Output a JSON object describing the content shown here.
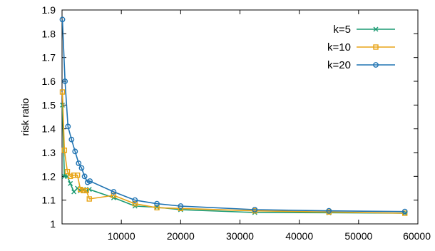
{
  "chart_data": {
    "type": "line",
    "title": "",
    "xlabel": "",
    "ylabel": "risk ratio",
    "xlim": [
      0,
      60000
    ],
    "ylim": [
      1,
      1.9
    ],
    "x_ticks": [
      10000,
      20000,
      30000,
      40000,
      50000,
      60000
    ],
    "x_tick_labels": [
      "10000",
      "20000",
      "30000",
      "40000",
      "50000",
      "60000"
    ],
    "y_ticks": [
      1,
      1.1,
      1.2,
      1.3,
      1.4,
      1.5,
      1.6,
      1.7,
      1.8,
      1.9
    ],
    "y_tick_labels": [
      "1",
      "1.1",
      "1.2",
      "1.3",
      "1.4",
      "1.5",
      "1.6",
      "1.7",
      "1.8",
      "1.9"
    ],
    "grid": false,
    "legend_position": "top-right",
    "series": [
      {
        "name": "k=5",
        "color": "#1a9a72",
        "marker": "x",
        "x": [
          60,
          400,
          900,
          1400,
          2000,
          2600,
          3100,
          3600,
          4100,
          4600,
          8700,
          12300,
          16000,
          20000,
          32500,
          45000,
          57800
        ],
        "y": [
          1.5,
          1.2,
          1.2,
          1.17,
          1.135,
          1.15,
          1.14,
          1.145,
          1.14,
          1.145,
          1.11,
          1.075,
          1.07,
          1.06,
          1.048,
          1.047,
          1.045
        ]
      },
      {
        "name": "k=10",
        "color": "#e8a416",
        "marker": "square",
        "x": [
          60,
          400,
          900,
          1400,
          2000,
          2600,
          3100,
          3600,
          4100,
          4600,
          8700,
          12300,
          16000,
          20000,
          32500,
          45000,
          57800
        ],
        "y": [
          1.555,
          1.31,
          1.22,
          1.2,
          1.205,
          1.205,
          1.145,
          1.14,
          1.14,
          1.105,
          1.12,
          1.085,
          1.068,
          1.065,
          1.055,
          1.05,
          1.045
        ]
      },
      {
        "name": "k=20",
        "color": "#1f73b2",
        "marker": "circle",
        "x": [
          60,
          500,
          1000,
          1600,
          2200,
          2800,
          3300,
          3800,
          4300,
          4700,
          8700,
          12300,
          16000,
          20000,
          32500,
          45000,
          57800
        ],
        "y": [
          1.86,
          1.6,
          1.41,
          1.355,
          1.305,
          1.255,
          1.235,
          1.2,
          1.175,
          1.18,
          1.135,
          1.1,
          1.085,
          1.075,
          1.06,
          1.055,
          1.052
        ]
      }
    ]
  }
}
